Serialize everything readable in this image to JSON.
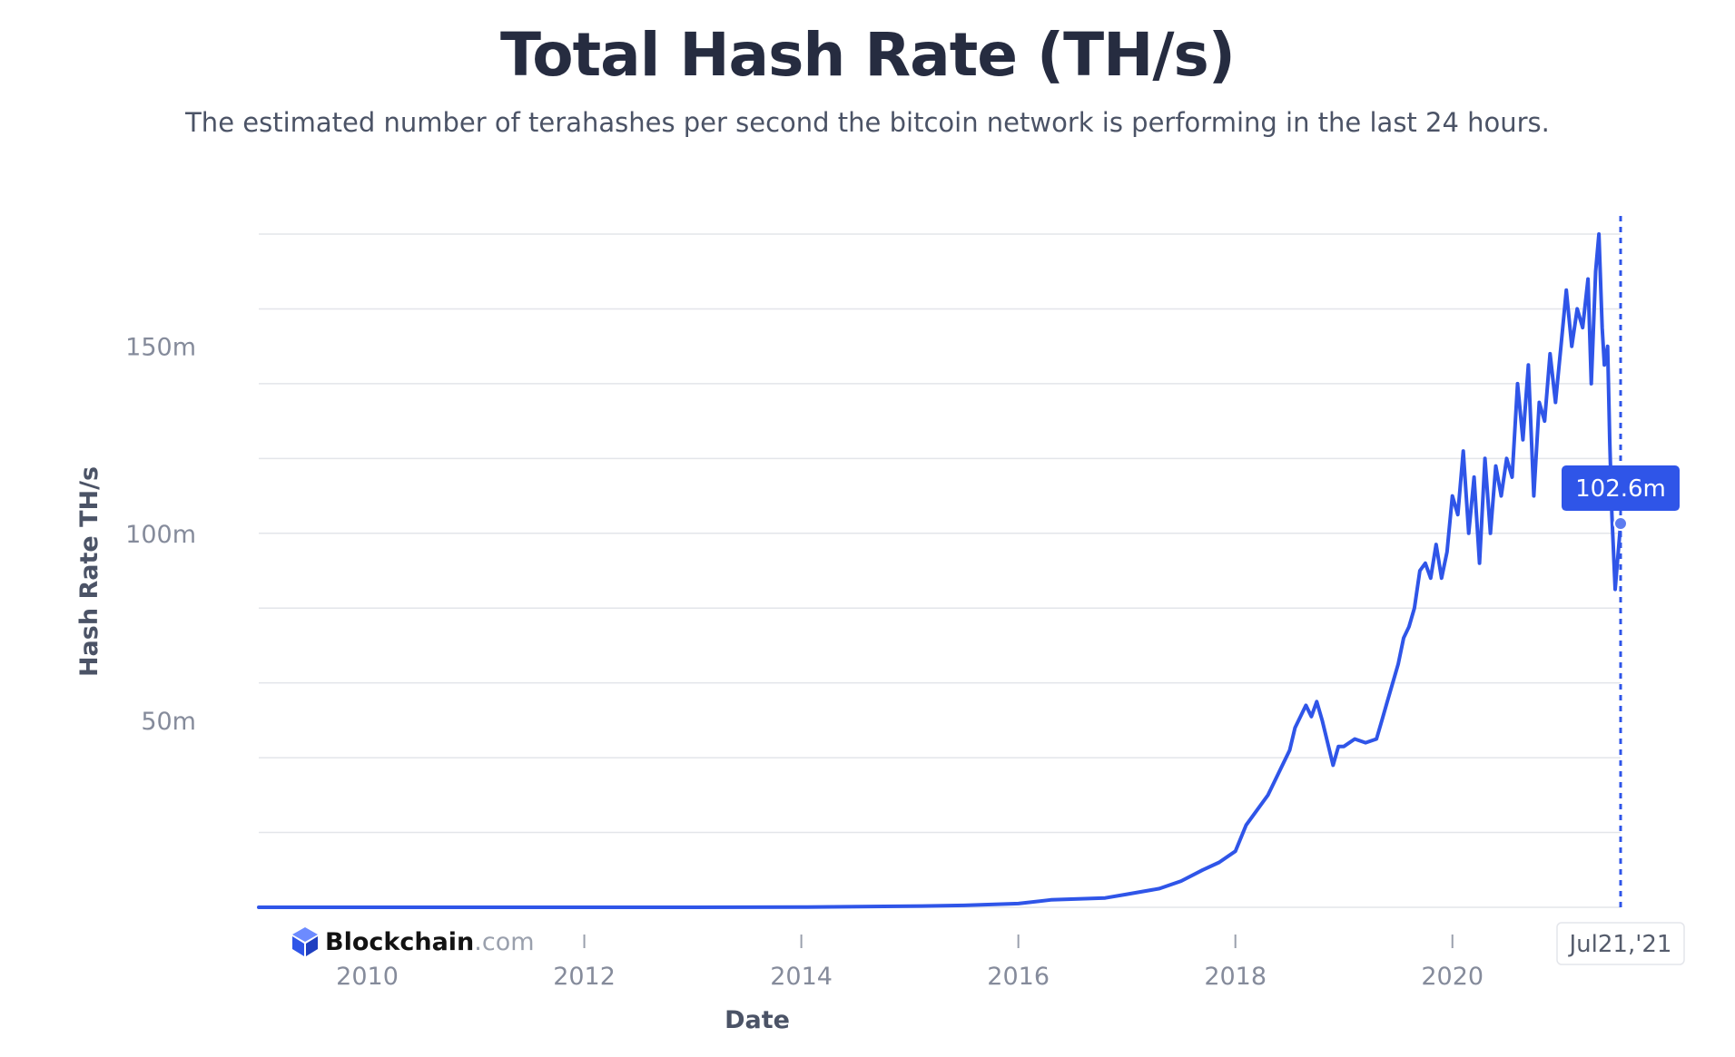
{
  "title": "Total Hash Rate (TH/s)",
  "subtitle": "The estimated number of terahashes per second the bitcoin network is performing in the last 24 hours.",
  "brand": {
    "name_bold": "Blockchain",
    "name_suffix": ".com",
    "icon": "blockchain-cube-icon"
  },
  "tooltip": {
    "value_label": "102.6m",
    "date_label": "Jul21,'21",
    "value": 102.6
  },
  "colors": {
    "line": "#2f55e8",
    "tooltip_bg": "#2f55e8",
    "grid": "#e3e5ea",
    "text_muted": "#858b9b"
  },
  "chart_data": {
    "type": "line",
    "title": "Total Hash Rate (TH/s)",
    "xlabel": "Date",
    "ylabel": "Hash Rate TH/s",
    "y_unit": "millions TH/s",
    "xlim": [
      2009.0,
      2021.55
    ],
    "ylim": [
      0,
      180
    ],
    "x_ticks": [
      {
        "value": 2010,
        "label": "2010"
      },
      {
        "value": 2012,
        "label": "2012"
      },
      {
        "value": 2014,
        "label": "2014"
      },
      {
        "value": 2016,
        "label": "2016"
      },
      {
        "value": 2018,
        "label": "2018"
      },
      {
        "value": 2020,
        "label": "2020"
      }
    ],
    "y_ticks": [
      {
        "value": 50,
        "label": "50m"
      },
      {
        "value": 100,
        "label": "100m"
      },
      {
        "value": 150,
        "label": "150m"
      }
    ],
    "y_grid": [
      0,
      20,
      40,
      60,
      80,
      100,
      120,
      140,
      160,
      180
    ],
    "grid": true,
    "legend": "none",
    "series": [
      {
        "x": [
          2009.0,
          2013.0,
          2014.0,
          2015.0,
          2015.5,
          2016.0,
          2016.3,
          2016.8,
          2017.0,
          2017.3,
          2017.5,
          2017.7,
          2017.85,
          2018.0,
          2018.1,
          2018.2,
          2018.3,
          2018.4,
          2018.5,
          2018.55,
          2018.6,
          2018.65,
          2018.7,
          2018.75,
          2018.8,
          2018.85,
          2018.9,
          2018.95,
          2019.0,
          2019.1,
          2019.2,
          2019.3,
          2019.35,
          2019.4,
          2019.45,
          2019.5,
          2019.55,
          2019.6,
          2019.65,
          2019.7,
          2019.75,
          2019.8,
          2019.85,
          2019.9,
          2019.95,
          2020.0,
          2020.05,
          2020.1,
          2020.15,
          2020.2,
          2020.25,
          2020.3,
          2020.35,
          2020.4,
          2020.45,
          2020.5,
          2020.55,
          2020.6,
          2020.65,
          2020.7,
          2020.75,
          2020.8,
          2020.85,
          2020.9,
          2020.95,
          2021.0,
          2021.05,
          2021.1,
          2021.15,
          2021.2,
          2021.25,
          2021.28,
          2021.32,
          2021.35,
          2021.38,
          2021.4,
          2021.43,
          2021.45,
          2021.47,
          2021.5,
          2021.55
        ],
        "y": [
          0,
          0,
          0.05,
          0.3,
          0.5,
          1.0,
          2.0,
          2.5,
          3.5,
          5.0,
          7.0,
          10.0,
          12.0,
          15.0,
          22.0,
          26.0,
          30.0,
          36.0,
          42.0,
          48.0,
          51.0,
          54.0,
          51.0,
          55.0,
          50.0,
          44.0,
          38.0,
          43.0,
          43.0,
          45.0,
          44.0,
          45.0,
          50.0,
          55.0,
          60.0,
          65.0,
          72.0,
          75.0,
          80.0,
          90.0,
          92.0,
          88.0,
          97.0,
          88.0,
          95.0,
          110.0,
          105.0,
          122.0,
          100.0,
          115.0,
          92.0,
          120.0,
          100.0,
          118.0,
          110.0,
          120.0,
          115.0,
          140.0,
          125.0,
          145.0,
          110.0,
          135.0,
          130.0,
          148.0,
          135.0,
          150.0,
          165.0,
          150.0,
          160.0,
          155.0,
          168.0,
          140.0,
          170.0,
          180.0,
          155.0,
          145.0,
          150.0,
          125.0,
          105.0,
          85.0,
          102.6
        ]
      }
    ],
    "marker": {
      "x": 2021.55,
      "y": 102.6,
      "label": "102.6m",
      "date_label": "Jul21,'21"
    }
  }
}
